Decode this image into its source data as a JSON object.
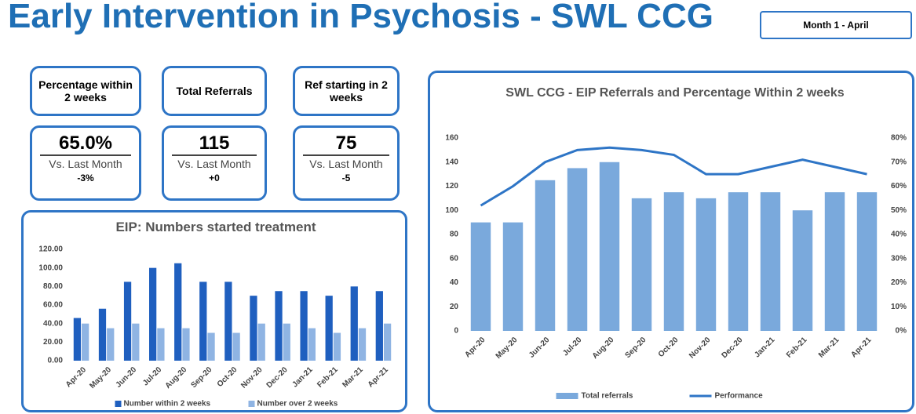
{
  "header": {
    "title": "Early Intervention in Psychosis - SWL CCG",
    "period": "Month 1 - April"
  },
  "kpis": [
    {
      "label": "Percentage within 2 weeks",
      "value": "65.0%",
      "compare": "Vs. Last Month",
      "delta": "-3%"
    },
    {
      "label": "Total Referrals",
      "value": "115",
      "compare": "Vs. Last Month",
      "delta": "+0"
    },
    {
      "label": "Ref starting in 2 weeks",
      "value": "75",
      "compare": "Vs. Last Month",
      "delta": "-5"
    }
  ],
  "chart_data": [
    {
      "type": "bar",
      "title": "EIP: Numbers started treatment",
      "categories": [
        "Apr-20",
        "May-20",
        "Jun-20",
        "Jul-20",
        "Aug-20",
        "Sep-20",
        "Oct-20",
        "Nov-20",
        "Dec-20",
        "Jan-21",
        "Feb-21",
        "Mar-21",
        "Apr-21"
      ],
      "series": [
        {
          "name": "Number within 2 weeks",
          "color": "#1f5fbf",
          "values": [
            46,
            56,
            85,
            100,
            105,
            85,
            85,
            70,
            75,
            75,
            70,
            80,
            75
          ]
        },
        {
          "name": "Number over 2 weeks",
          "color": "#8fb4e3",
          "values": [
            40,
            35,
            40,
            35,
            35,
            30,
            30,
            40,
            40,
            35,
            30,
            35,
            40
          ]
        }
      ],
      "ylim": [
        0,
        120
      ],
      "yticks": [
        {
          "value": 0,
          "label": "0.00"
        },
        {
          "value": 20,
          "label": "20.00"
        },
        {
          "value": 40,
          "label": "40.00"
        },
        {
          "value": 60,
          "label": "60.00"
        },
        {
          "value": 80,
          "label": "80.00"
        },
        {
          "value": 100,
          "label": "100.00"
        },
        {
          "value": 120,
          "label": "120.00"
        }
      ],
      "legend": "bottom"
    },
    {
      "type": "bar-line",
      "title": "SWL CCG - EIP Referrals and Percentage Within 2 weeks",
      "categories": [
        "Apr-20",
        "May-20",
        "Jun-20",
        "Jul-20",
        "Aug-20",
        "Sep-20",
        "Oct-20",
        "Nov-20",
        "Dec-20",
        "Jan-21",
        "Feb-21",
        "Mar-21",
        "Apr-21"
      ],
      "series": [
        {
          "name": "Total referrals",
          "color": "#7aa9dc",
          "values": [
            90,
            90,
            125,
            135,
            140,
            110,
            115,
            110,
            115,
            115,
            100,
            115,
            115
          ]
        },
        {
          "name": "Performance",
          "color": "#2e75c6",
          "axis": "y2",
          "values": [
            52,
            60,
            70,
            75,
            76,
            75,
            73,
            65,
            65,
            68,
            71,
            68,
            65
          ]
        }
      ],
      "ylim": [
        0,
        160
      ],
      "yticks": [
        0,
        20,
        40,
        60,
        80,
        100,
        120,
        140,
        160
      ],
      "y2lim": [
        0,
        80
      ],
      "y2ticks": [
        {
          "value": 0,
          "label": "0%"
        },
        {
          "value": 10,
          "label": "10%"
        },
        {
          "value": 20,
          "label": "20%"
        },
        {
          "value": 30,
          "label": "30%"
        },
        {
          "value": 40,
          "label": "40%"
        },
        {
          "value": 50,
          "label": "50%"
        },
        {
          "value": 60,
          "label": "60%"
        },
        {
          "value": 70,
          "label": "70%"
        },
        {
          "value": 80,
          "label": "80%"
        }
      ],
      "legend": "bottom"
    }
  ]
}
